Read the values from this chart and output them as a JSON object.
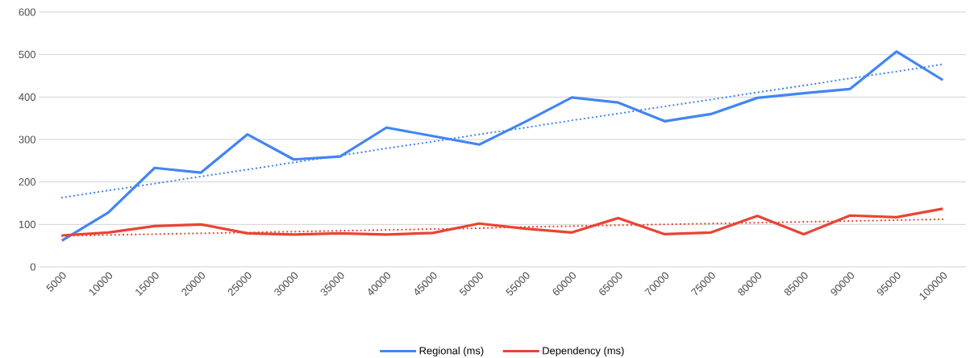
{
  "chart_data": {
    "type": "line",
    "x": [
      5000,
      10000,
      15000,
      20000,
      25000,
      30000,
      35000,
      40000,
      45000,
      50000,
      55000,
      60000,
      65000,
      70000,
      75000,
      80000,
      85000,
      90000,
      95000,
      100000
    ],
    "xlim": [
      2500,
      102500
    ],
    "xticks": [
      5000,
      10000,
      15000,
      20000,
      25000,
      30000,
      35000,
      40000,
      45000,
      50000,
      55000,
      60000,
      65000,
      70000,
      75000,
      80000,
      85000,
      90000,
      95000,
      100000
    ],
    "ylim": [
      0,
      600
    ],
    "yticks": [
      0,
      100,
      200,
      300,
      400,
      500,
      600
    ],
    "grid": "y",
    "legend": "bottom",
    "series": [
      {
        "name": "Regional (ms)",
        "color": "#4285f4",
        "values": [
          62,
          128,
          233,
          222,
          312,
          253,
          260,
          328,
          308,
          288,
          342,
          399,
          387,
          343,
          360,
          398,
          409,
          419,
          507,
          440
        ]
      },
      {
        "name": "Dependency (ms)",
        "color": "#ea4335",
        "values": [
          74,
          81,
          96,
          100,
          79,
          76,
          79,
          76,
          80,
          102,
          90,
          81,
          115,
          77,
          81,
          120,
          77,
          121,
          117,
          137
        ]
      },
      {
        "type": "line",
        "line_style": "dotted",
        "color": "#4285f4",
        "values": [
          163,
          180,
          196,
          213,
          229,
          246,
          262,
          279,
          295,
          312,
          328,
          345,
          361,
          378,
          394,
          411,
          427,
          444,
          460,
          477
        ]
      },
      {
        "type": "line",
        "line_style": "dotted",
        "color": "#ea4335",
        "values": [
          73,
          75,
          77,
          79,
          81,
          83,
          85,
          87,
          89,
          91,
          94,
          96,
          98,
          100,
          102,
          104,
          106,
          108,
          110,
          112
        ]
      }
    ]
  }
}
